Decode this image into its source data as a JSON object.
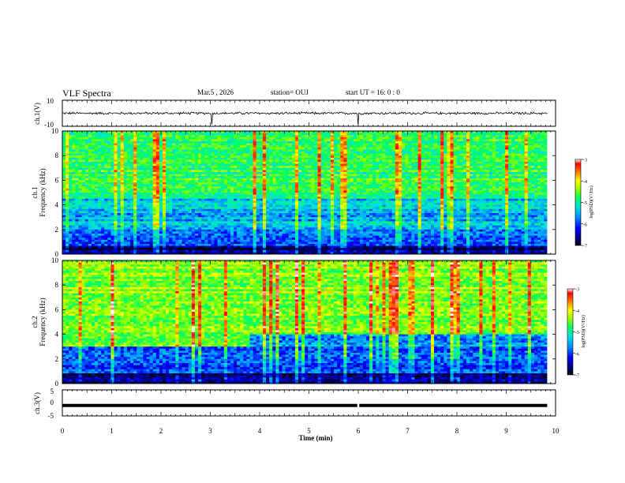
{
  "header": {
    "title": "VLF Spectra",
    "date": "Mar.5  , 2026",
    "station": "station= OUJ",
    "start": "start  UT =   16: 0  : 0"
  },
  "chart_data": [
    {
      "type": "line",
      "panel": "ch1-waveform",
      "ylabel": "ch.1(V)",
      "ylim": [
        -10,
        10
      ],
      "yticks": [
        "10",
        "-10"
      ],
      "baseline_value": 0,
      "noise_amplitude": 0.7,
      "spikes_min": [
        3.03,
        6.0
      ],
      "xlim": [
        0,
        9.83
      ]
    },
    {
      "type": "heatmap",
      "panel": "ch1-spectrogram",
      "channel_label": "ch.1",
      "ylabel": "Frequency  (kHz)",
      "ylim": [
        0,
        10
      ],
      "yticks": [
        "0",
        "2",
        "4",
        "6",
        "8",
        "10"
      ],
      "xlim_min": [
        0,
        9.83
      ],
      "dominant_band_kHz": [
        4.5,
        10
      ],
      "colorbar": {
        "label": "log(PSD)(V²/Hz)",
        "range": [
          -7,
          -3
        ],
        "ticks": [
          "-3",
          "-4",
          "-5",
          "-6",
          "-7"
        ]
      }
    },
    {
      "type": "heatmap",
      "panel": "ch2-spectrogram",
      "channel_label": "ch.2",
      "ylabel": "Frequency  (kHz)",
      "ylim": [
        0,
        10
      ],
      "yticks": [
        "0",
        "2",
        "4",
        "6",
        "8",
        "10"
      ],
      "xlim_min": [
        0,
        9.83
      ],
      "regime_change_min": 3.8,
      "colorbar": {
        "label": "log(PSD)(V²/Hz)",
        "range": [
          -7,
          -3
        ],
        "ticks": [
          "-3",
          "-4",
          "-5",
          "-6",
          "-7"
        ]
      }
    },
    {
      "type": "line",
      "panel": "ch3-waveform",
      "ylabel": "ch.3(V)",
      "ylim": [
        -5,
        5
      ],
      "yticks": [
        "5",
        "0",
        "-5"
      ],
      "baseline_value": -1,
      "gap_min": 6.0,
      "xlim": [
        0,
        9.83
      ]
    }
  ],
  "x_axis": {
    "label": "Time  (min)",
    "range": [
      0,
      10
    ],
    "ticks": [
      "0",
      "1",
      "2",
      "3",
      "4",
      "5",
      "6",
      "7",
      "8",
      "9",
      "10"
    ]
  },
  "colors": {
    "axis": "#000000",
    "trace": "#000000",
    "colormap": [
      "#000000",
      "#00007a",
      "#0000ff",
      "#0090ff",
      "#00e0e0",
      "#00ff60",
      "#90ff00",
      "#ffff00",
      "#ff8000",
      "#ff0000",
      "#ffffff"
    ]
  }
}
